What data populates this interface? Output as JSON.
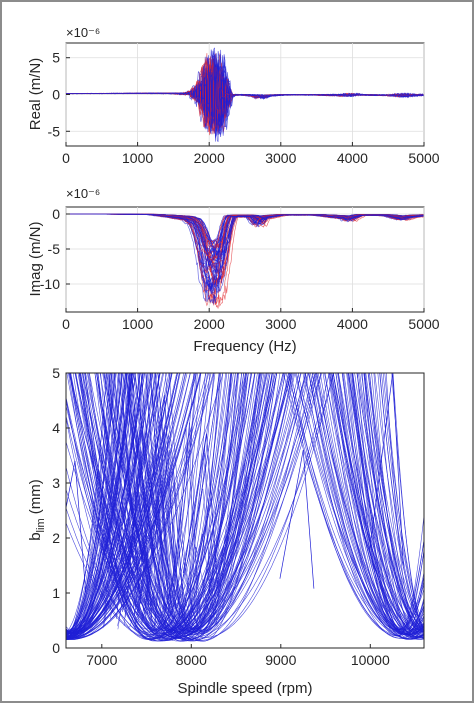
{
  "colors": {
    "primary": "#1f1fd6",
    "secondary": "#e0262b",
    "axis": "#262626",
    "grid": "#dedede"
  },
  "chart_data": [
    {
      "type": "line",
      "title": "",
      "xlabel": "",
      "ylabel": "Real (m/N)",
      "exponent_label": "×10⁻⁶",
      "xlim": [
        0,
        5000
      ],
      "ylim": [
        -7,
        7
      ],
      "xticks": [
        0,
        1000,
        2000,
        3000,
        4000,
        5000
      ],
      "yticks": [
        -5,
        0,
        5
      ],
      "grid": true,
      "series_colors": [
        "#1f1fd6",
        "#e0262b"
      ],
      "envelope": {
        "x": [
          0,
          1000,
          1500,
          1700,
          1800,
          1850,
          1900,
          1950,
          2000,
          2050,
          2100,
          2150,
          2200,
          2250,
          2300,
          2500,
          2650,
          2700,
          2800,
          3000,
          3500,
          3900,
          3950,
          4000,
          4100,
          4500,
          4650,
          4700,
          4800,
          5000
        ],
        "upper": [
          0.2,
          0.25,
          0.3,
          0.5,
          1.0,
          1.5,
          2.5,
          4.5,
          6.5,
          6.8,
          6.5,
          5.5,
          3.0,
          0.5,
          0.2,
          0.1,
          0.2,
          0.3,
          0.1,
          0.1,
          0.1,
          0.3,
          0.5,
          0.4,
          0.1,
          0.1,
          0.4,
          0.6,
          0.3,
          0.2
        ],
        "lower": [
          0.05,
          0.05,
          0.0,
          -0.3,
          -0.5,
          -1.0,
          -2.0,
          -4.0,
          -6.0,
          -6.5,
          -6.8,
          -6.0,
          -4.0,
          -1.0,
          -0.3,
          -0.2,
          -0.5,
          -1.0,
          -0.4,
          -0.2,
          -0.2,
          -0.5,
          -0.6,
          -0.4,
          -0.2,
          -0.3,
          -0.6,
          -0.8,
          -0.5,
          -0.3
        ]
      }
    },
    {
      "type": "line",
      "title": "",
      "xlabel": "Frequency (Hz)",
      "ylabel": "Imag (m/N)",
      "exponent_label": "×10⁻⁶",
      "xlim": [
        0,
        5000
      ],
      "ylim": [
        -14,
        1
      ],
      "xticks": [
        0,
        1000,
        2000,
        3000,
        4000,
        5000
      ],
      "yticks": [
        -10,
        -5,
        0
      ],
      "grid": true,
      "series_colors": [
        "#1f1fd6",
        "#e0262b"
      ],
      "envelope": {
        "x": [
          0,
          800,
          1000,
          1200,
          1500,
          1700,
          1800,
          1850,
          1900,
          1950,
          2000,
          2050,
          2100,
          2150,
          2200,
          2250,
          2300,
          2600,
          2650,
          2700,
          2750,
          3000,
          3500,
          3900,
          3950,
          4000,
          4100,
          4500,
          4700,
          4800,
          5000
        ],
        "lower": [
          0,
          -0.05,
          -0.1,
          -0.1,
          -0.6,
          -1.0,
          -2.0,
          -4.0,
          -7.0,
          -11.0,
          -13.5,
          -14.0,
          -13.5,
          -12.0,
          -8.0,
          -3.0,
          -0.5,
          -0.5,
          -1.5,
          -2.0,
          -0.8,
          -0.2,
          -0.2,
          -0.8,
          -1.2,
          -0.8,
          -0.2,
          -0.3,
          -1.0,
          -0.6,
          -0.3
        ]
      }
    },
    {
      "type": "line",
      "title": "",
      "xlabel": "Spindle speed (rpm)",
      "ylabel": "b_lim (mm)",
      "xlim": [
        6600,
        10600
      ],
      "ylim": [
        0,
        5
      ],
      "xticks": [
        7000,
        8000,
        9000,
        10000
      ],
      "yticks": [
        0,
        1,
        2,
        3,
        4,
        5
      ],
      "grid": false,
      "series_colors": [
        "#1f1fd6"
      ],
      "lobe_families": [
        {
          "center_range": [
            6550,
            6700
          ],
          "min_range": [
            0.15,
            0.3
          ]
        },
        {
          "center_range": [
            7500,
            8150
          ],
          "min_range": [
            0.12,
            0.35
          ]
        },
        {
          "center_range": [
            10300,
            10700
          ],
          "min_range": [
            0.15,
            0.35
          ]
        }
      ],
      "notable_peaks": [
        {
          "x": 6700,
          "y": 3.4
        },
        {
          "x": 7560,
          "y": 4.7
        },
        {
          "x": 7700,
          "y": 4.6
        },
        {
          "x": 8170,
          "y": 3.9
        },
        {
          "x": 9250,
          "y": 3.6
        },
        {
          "x": 10250,
          "y": 5.0
        }
      ]
    }
  ]
}
